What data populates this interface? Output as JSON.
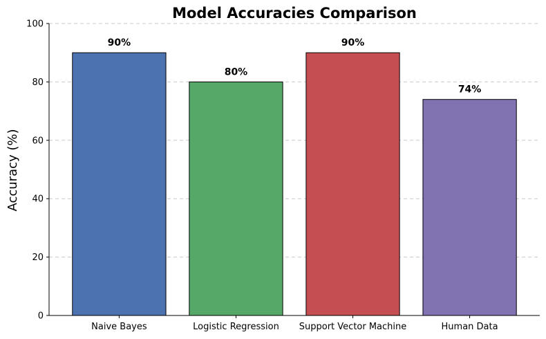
{
  "chart_data": {
    "type": "bar",
    "title": "Model Accuracies Comparison",
    "xlabel": "",
    "ylabel": "Accuracy (%)",
    "ylim": [
      0,
      100
    ],
    "yticks": [
      0,
      20,
      40,
      60,
      80,
      100
    ],
    "grid": "horizontal dashed",
    "categories": [
      "Naive Bayes",
      "Logistic Regression",
      "Support Vector Machine",
      "Human Data"
    ],
    "values": [
      90,
      80,
      90,
      74
    ],
    "value_labels": [
      "90%",
      "80%",
      "90%",
      "74%"
    ],
    "colors": [
      "#4c72b0",
      "#55a868",
      "#c44e52",
      "#8172b2"
    ],
    "edge_color": "#000000"
  }
}
